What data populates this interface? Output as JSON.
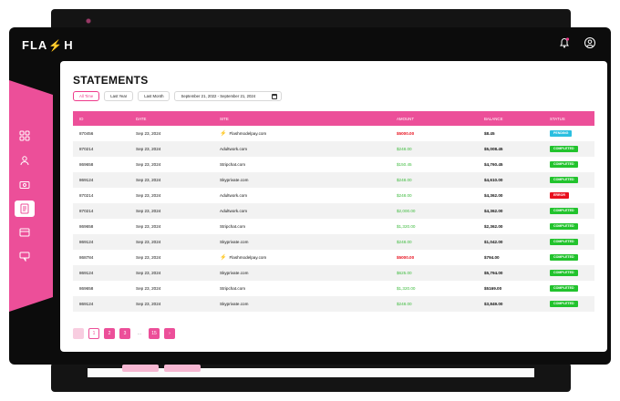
{
  "app": {
    "logo_left": "FLA",
    "logo_bolt": "⚡",
    "logo_right": "H"
  },
  "page": {
    "title": "STATEMENTS"
  },
  "filters": {
    "all_time": "All Time",
    "last_year": "Last Year",
    "last_month": "Last Month",
    "date_range": "September 21, 2022 - September 21, 2024"
  },
  "table": {
    "headers": {
      "id": "ID",
      "date": "DATE",
      "site": "SITE",
      "amount": "AMOUNT",
      "balance": "BALANCE",
      "status": "STATUS"
    },
    "rows": [
      {
        "id": "870456",
        "date": "Sep 23, 2024",
        "site": "Flashmodelpay.com",
        "flash": true,
        "amount": "$5000.00",
        "amount_color": "red",
        "balance": "$8.45",
        "status": "PENDING",
        "status_kind": "pending"
      },
      {
        "id": "870214",
        "date": "Sep 23, 2024",
        "site": "Adultwork.com",
        "flash": false,
        "amount": "$248.00",
        "amount_color": "green",
        "balance": "$5,008.45",
        "status": "COMPLETED",
        "status_kind": "completed"
      },
      {
        "id": "869658",
        "date": "Sep 23, 2024",
        "site": "Stripchat.com",
        "flash": false,
        "amount": "$150.45",
        "amount_color": "green",
        "balance": "$4,760.45",
        "status": "COMPLETED",
        "status_kind": "completed"
      },
      {
        "id": "869124",
        "date": "Sep 23, 2024",
        "site": "Skyprivate.com",
        "flash": false,
        "amount": "$248.00",
        "amount_color": "green",
        "balance": "$4,610.00",
        "status": "COMPLETED",
        "status_kind": "completed"
      },
      {
        "id": "870214",
        "date": "Sep 23, 2024",
        "site": "Adultwork.com",
        "flash": false,
        "amount": "$248.00",
        "amount_color": "green",
        "balance": "$4,362.00",
        "status": "ERROR",
        "status_kind": "error"
      },
      {
        "id": "870214",
        "date": "Sep 23, 2024",
        "site": "Adultwork.com",
        "flash": false,
        "amount": "$2,000.00",
        "amount_color": "green",
        "balance": "$4,362.00",
        "status": "COMPLETED",
        "status_kind": "completed"
      },
      {
        "id": "869658",
        "date": "Sep 23, 2024",
        "site": "Stripchat.com",
        "flash": false,
        "amount": "$1,320.00",
        "amount_color": "green",
        "balance": "$2,362.00",
        "status": "COMPLETED",
        "status_kind": "completed"
      },
      {
        "id": "869124",
        "date": "Sep 23, 2024",
        "site": "Skyprivate.com",
        "flash": false,
        "amount": "$248.00",
        "amount_color": "green",
        "balance": "$1,042.00",
        "status": "COMPLETED",
        "status_kind": "completed"
      },
      {
        "id": "868784",
        "date": "Sep 23, 2024",
        "site": "Flashmodelpay.com",
        "flash": true,
        "amount": "$5000.00",
        "amount_color": "red",
        "balance": "$794.00",
        "status": "COMPLETED",
        "status_kind": "completed"
      },
      {
        "id": "869124",
        "date": "Sep 23, 2024",
        "site": "Skyprivate.com",
        "flash": false,
        "amount": "$625.00",
        "amount_color": "green",
        "balance": "$5,794.00",
        "status": "COMPLETED",
        "status_kind": "completed"
      },
      {
        "id": "869658",
        "date": "Sep 23, 2024",
        "site": "Stripchat.com",
        "flash": false,
        "amount": "$1,320.00",
        "amount_color": "green",
        "balance": "$5169.00",
        "status": "COMPLETED",
        "status_kind": "completed"
      },
      {
        "id": "869124",
        "date": "Sep 23, 2024",
        "site": "Skyprivate.com",
        "flash": false,
        "amount": "$248.00",
        "amount_color": "green",
        "balance": "$3,849.00",
        "status": "COMPLETED",
        "status_kind": "completed"
      }
    ]
  },
  "pagination": {
    "pages": [
      "1",
      "2",
      "3"
    ],
    "ellipsis": "...",
    "last": "15",
    "next": "›",
    "current": "1"
  },
  "icons": {
    "nav": [
      "grid-icon",
      "users-icon",
      "wallet-icon",
      "statements-icon",
      "card-icon",
      "chat-icon"
    ],
    "top": [
      "bell-icon",
      "user-icon"
    ]
  },
  "colors": {
    "brand": "#ec4f99",
    "positive": "#3dbb3d",
    "negative": "#e8101e",
    "pending": "#2bbfe0",
    "completed": "#22c32d",
    "error": "#e8101e"
  }
}
